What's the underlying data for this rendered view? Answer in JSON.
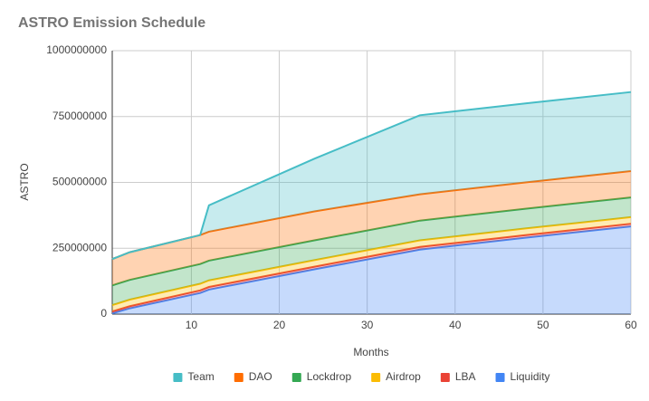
{
  "chart_data": {
    "type": "stacked-area",
    "title": "ASTRO Emission Schedule",
    "x_label": "Months",
    "y_label": "ASTRO",
    "x": [
      1,
      3,
      11,
      12,
      24,
      36,
      48,
      60
    ],
    "series": [
      {
        "name": "Team",
        "color": "#46bdc6",
        "values": [
          0,
          0,
          0,
          100000000,
          200000000,
          300000000,
          300000000,
          300000000
        ]
      },
      {
        "name": "DAO",
        "color": "#ff6d01",
        "values": [
          100000000,
          105000000,
          110000000,
          110000000,
          110000000,
          100000000,
          100000000,
          100000000
        ]
      },
      {
        "name": "Lockdrop",
        "color": "#34a853",
        "values": [
          75000000,
          75000000,
          75000000,
          75000000,
          75000000,
          75000000,
          75000000,
          75000000
        ]
      },
      {
        "name": "Airdrop",
        "color": "#fbbc04",
        "values": [
          24000000,
          25000000,
          25000000,
          25000000,
          25000000,
          25000000,
          25000000,
          25000000
        ]
      },
      {
        "name": "LBA",
        "color": "#ea4335",
        "values": [
          7000000,
          8000000,
          10000000,
          10000000,
          10000000,
          10000000,
          10000000,
          10000000
        ]
      },
      {
        "name": "Liquidity",
        "color": "#4285f4",
        "values": [
          3000000,
          22000000,
          80000000,
          93000000,
          170000000,
          245000000,
          290000000,
          333000000
        ]
      }
    ],
    "xlim": [
      1,
      60
    ],
    "xticks": [
      10,
      20,
      30,
      40,
      50,
      60
    ],
    "ylim": [
      0,
      1000000000
    ],
    "yticks": [
      0,
      250000000,
      500000000,
      750000000,
      1000000000
    ],
    "grid": true,
    "legend": "bottom"
  }
}
